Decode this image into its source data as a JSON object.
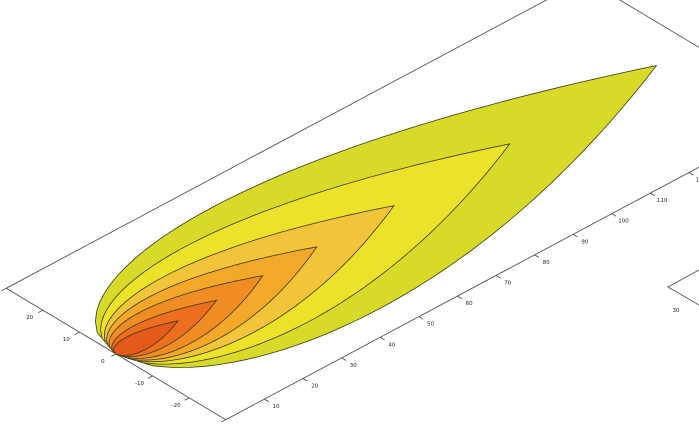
{
  "chart_data": {
    "type": "contour",
    "title": "",
    "xlabel": "",
    "ylabel": "",
    "x_axis": {
      "ticks": [
        10,
        20,
        30,
        40,
        50,
        60,
        70,
        80,
        90,
        100,
        110,
        120,
        130,
        140
      ],
      "tick_labels": [
        "10",
        "20",
        "30",
        "40",
        "50",
        "60",
        "70",
        "80",
        "90",
        "100",
        "110",
        "120",
        "130",
        "140"
      ],
      "range": [
        0,
        150
      ]
    },
    "y_axis": {
      "ticks": [
        -30,
        -20,
        -10,
        0,
        10,
        20,
        30
      ],
      "tick_labels": [
        "-30",
        "-20",
        "-10",
        "0",
        "10",
        "20",
        "30"
      ],
      "range": [
        -30,
        30
      ]
    },
    "grid": false,
    "legend": "none",
    "source_point": [
      0,
      0
    ],
    "contours": [
      {
        "level": 1,
        "x_extent": [
          0,
          140
        ],
        "max_halfwidth": 23,
        "color": "#d8da2a"
      },
      {
        "level": 2,
        "x_extent": [
          0,
          102
        ],
        "max_halfwidth": 17,
        "color": "#ece22a"
      },
      {
        "level": 3,
        "x_extent": [
          0,
          72
        ],
        "max_halfwidth": 12.5,
        "color": "#f2c43a"
      },
      {
        "level": 4,
        "x_extent": [
          0,
          52
        ],
        "max_halfwidth": 9.5,
        "color": "#f3a82a"
      },
      {
        "level": 5,
        "x_extent": [
          0,
          38
        ],
        "max_halfwidth": 7,
        "color": "#f08c24"
      },
      {
        "level": 6,
        "x_extent": [
          0,
          26
        ],
        "max_halfwidth": 4.5,
        "color": "#ec6e1e"
      },
      {
        "level": 7,
        "x_extent": [
          0,
          16
        ],
        "max_halfwidth": 2.7,
        "color": "#e55a1c"
      }
    ]
  },
  "partial_chart": {
    "tick_labels": [
      "30"
    ]
  }
}
